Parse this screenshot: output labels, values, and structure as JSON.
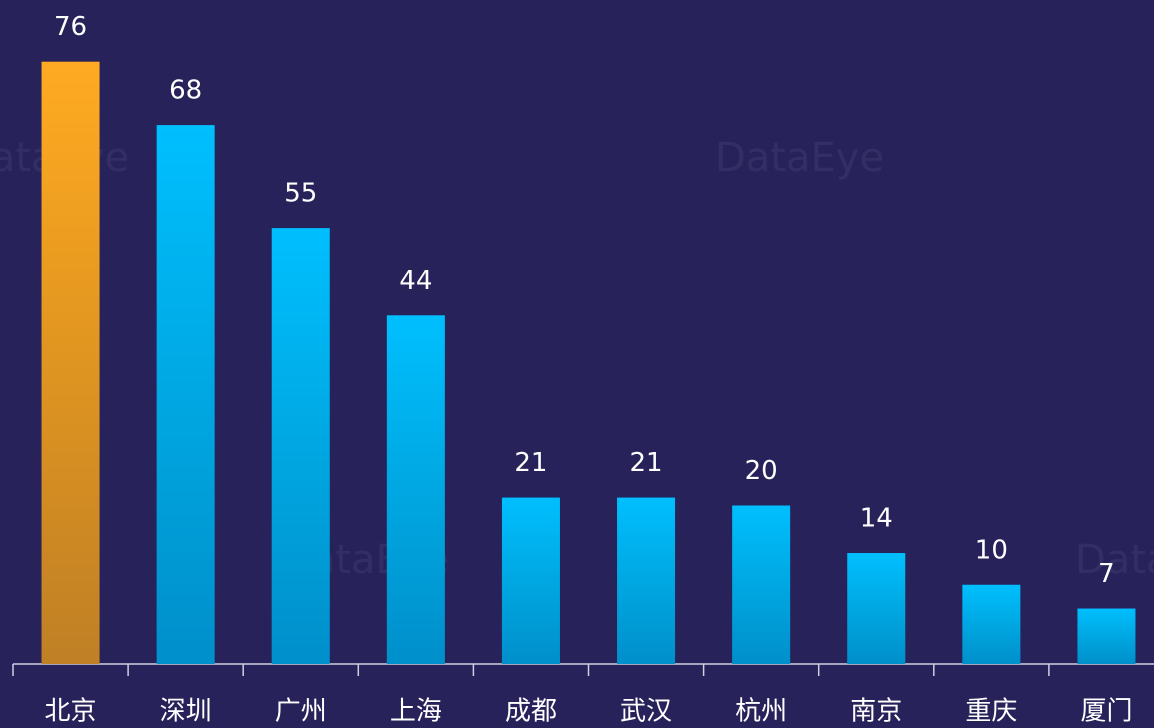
{
  "chart_data": {
    "type": "bar",
    "watermark": "DataEye",
    "categories": [
      "北京",
      "深圳",
      "广州",
      "上海",
      "成都",
      "武汉",
      "杭州",
      "南京",
      "重庆",
      "厦门"
    ],
    "values": [
      76,
      68,
      55,
      44,
      21,
      21,
      20,
      14,
      10,
      7
    ],
    "colors": [
      "#ffaa22",
      "#00bfff",
      "#00bfff",
      "#00bfff",
      "#00bfff",
      "#00bfff",
      "#00bfff",
      "#00bfff",
      "#00bfff",
      "#00bfff"
    ],
    "ylim": [
      0,
      80
    ]
  }
}
